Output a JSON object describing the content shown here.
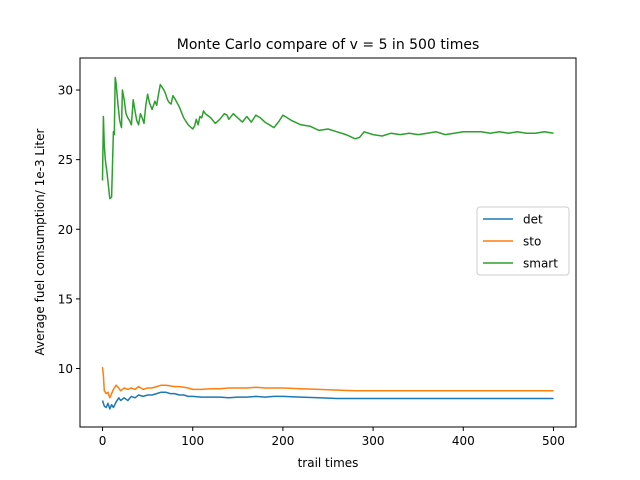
{
  "chart_data": {
    "type": "line",
    "title": "Monte Carlo compare of v = 5 in 500 times",
    "xlabel": "trail times",
    "ylabel": "Average fuel comsumption/ 1e-3 Liter",
    "xlim": [
      -25,
      525
    ],
    "ylim": [
      5.8,
      32.3
    ],
    "xticks": [
      0,
      100,
      200,
      300,
      400,
      500
    ],
    "yticks": [
      10,
      15,
      20,
      25,
      30
    ],
    "grid": false,
    "legend": {
      "placement": "center-right",
      "entries": [
        "det",
        "sto",
        "smart"
      ]
    },
    "series": [
      {
        "name": "det",
        "color": "#1f77b4",
        "x": [
          0,
          2,
          4,
          6,
          8,
          10,
          12,
          15,
          18,
          20,
          24,
          28,
          32,
          36,
          40,
          45,
          50,
          55,
          60,
          65,
          70,
          75,
          80,
          85,
          90,
          95,
          100,
          110,
          120,
          130,
          140,
          150,
          160,
          170,
          180,
          190,
          200,
          220,
          240,
          260,
          280,
          300,
          320,
          340,
          360,
          380,
          400,
          420,
          440,
          460,
          480,
          500
        ],
        "y": [
          7.7,
          7.3,
          7.2,
          7.5,
          7.1,
          7.4,
          7.2,
          7.6,
          7.9,
          7.7,
          7.9,
          7.7,
          8.0,
          7.9,
          8.1,
          8.0,
          8.1,
          8.1,
          8.2,
          8.3,
          8.3,
          8.2,
          8.2,
          8.1,
          8.1,
          8.0,
          8.0,
          7.95,
          7.95,
          7.95,
          7.9,
          7.95,
          7.95,
          8.0,
          7.95,
          8.0,
          8.0,
          7.95,
          7.9,
          7.85,
          7.85,
          7.85,
          7.85,
          7.85,
          7.85,
          7.85,
          7.85,
          7.85,
          7.85,
          7.85,
          7.85,
          7.85
        ]
      },
      {
        "name": "sto",
        "color": "#ff7f0e",
        "x": [
          0,
          1,
          2,
          4,
          6,
          8,
          10,
          12,
          15,
          18,
          20,
          24,
          28,
          32,
          36,
          40,
          45,
          50,
          55,
          60,
          65,
          70,
          75,
          80,
          85,
          90,
          95,
          100,
          110,
          120,
          130,
          140,
          150,
          160,
          170,
          180,
          190,
          200,
          220,
          240,
          260,
          280,
          300,
          320,
          340,
          360,
          380,
          400,
          420,
          440,
          460,
          480,
          500
        ],
        "y": [
          10.1,
          9.5,
          8.4,
          8.2,
          8.3,
          7.9,
          8.2,
          8.5,
          8.8,
          8.6,
          8.4,
          8.6,
          8.5,
          8.6,
          8.5,
          8.7,
          8.5,
          8.6,
          8.6,
          8.7,
          8.8,
          8.8,
          8.75,
          8.7,
          8.7,
          8.65,
          8.6,
          8.5,
          8.5,
          8.55,
          8.55,
          8.6,
          8.6,
          8.6,
          8.65,
          8.6,
          8.6,
          8.6,
          8.55,
          8.5,
          8.45,
          8.4,
          8.4,
          8.4,
          8.4,
          8.4,
          8.4,
          8.4,
          8.4,
          8.4,
          8.4,
          8.4,
          8.4
        ]
      },
      {
        "name": "smart",
        "color": "#2ca02c",
        "x": [
          0,
          1,
          2,
          3,
          5,
          8,
          10,
          12,
          13,
          14,
          15,
          17,
          19,
          21,
          22,
          24,
          26,
          28,
          30,
          32,
          34,
          36,
          38,
          40,
          42,
          44,
          46,
          48,
          50,
          52,
          55,
          58,
          60,
          62,
          64,
          66,
          68,
          70,
          72,
          74,
          76,
          78,
          80,
          85,
          90,
          95,
          100,
          102,
          104,
          106,
          108,
          110,
          112,
          114,
          116,
          118,
          120,
          125,
          130,
          135,
          138,
          140,
          145,
          150,
          155,
          160,
          165,
          170,
          175,
          180,
          185,
          190,
          195,
          200,
          205,
          210,
          220,
          230,
          240,
          250,
          260,
          270,
          280,
          285,
          290,
          300,
          310,
          320,
          330,
          340,
          350,
          360,
          370,
          380,
          390,
          400,
          410,
          420,
          430,
          440,
          450,
          460,
          470,
          480,
          490,
          500
        ],
        "y": [
          23.5,
          28.1,
          26.0,
          25.0,
          24.0,
          22.2,
          22.3,
          27.0,
          26.8,
          30.9,
          30.5,
          29.0,
          27.8,
          27.3,
          30.0,
          29.3,
          28.3,
          28.0,
          27.8,
          27.5,
          29.3,
          28.5,
          27.8,
          27.5,
          28.3,
          28.0,
          27.6,
          28.9,
          29.7,
          29.1,
          28.6,
          29.2,
          28.9,
          29.7,
          30.4,
          30.2,
          30.0,
          29.7,
          29.3,
          29.1,
          29.0,
          29.6,
          29.4,
          28.8,
          28.0,
          27.5,
          27.2,
          27.4,
          27.9,
          27.5,
          28.1,
          28.0,
          28.5,
          28.3,
          28.2,
          28.1,
          28.0,
          27.6,
          27.9,
          28.3,
          28.2,
          27.9,
          28.3,
          28.0,
          27.7,
          28.1,
          27.7,
          28.2,
          28.0,
          27.7,
          27.5,
          27.3,
          27.7,
          28.2,
          28.0,
          27.8,
          27.5,
          27.4,
          27.1,
          27.2,
          27.0,
          26.8,
          26.5,
          26.6,
          27.0,
          26.8,
          26.7,
          26.9,
          26.8,
          26.9,
          26.8,
          26.9,
          27.0,
          26.8,
          26.9,
          27.0,
          27.0,
          27.0,
          26.9,
          27.0,
          26.9,
          27.0,
          26.9,
          26.9,
          27.0,
          26.9
        ]
      }
    ]
  }
}
